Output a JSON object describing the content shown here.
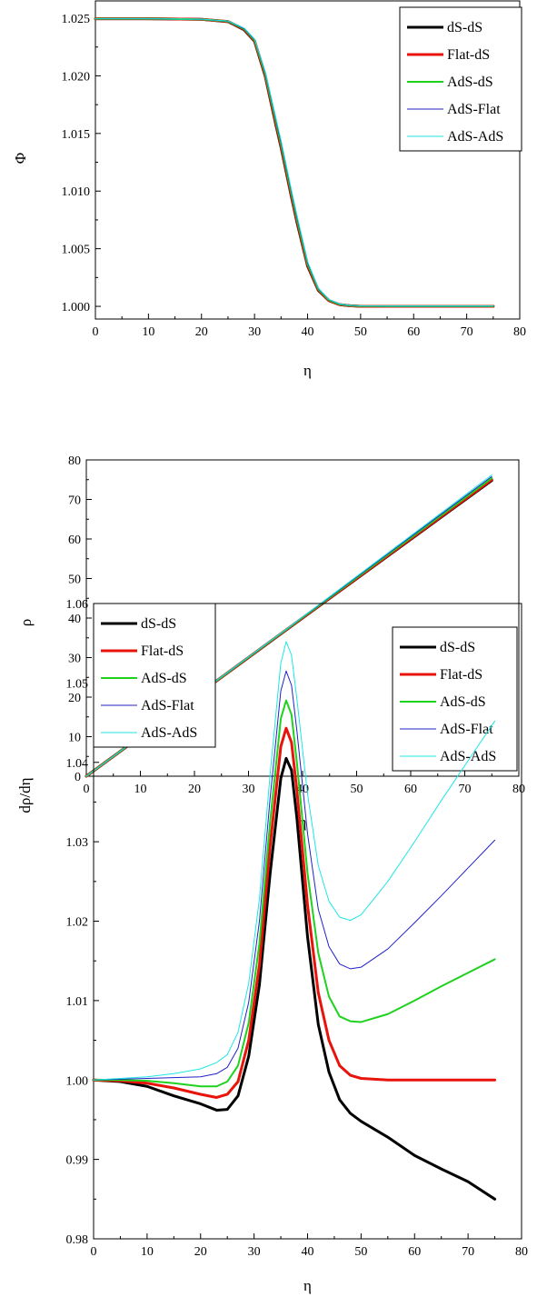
{
  "chart_data": [
    {
      "type": "line",
      "xlabel": "η",
      "ylabel": "Φ",
      "xlim": [
        0,
        80
      ],
      "ylim": [
        0.9989,
        1.0265
      ],
      "xticks": [
        "0",
        "10",
        "20",
        "30",
        "40",
        "50",
        "60",
        "70",
        "80"
      ],
      "yticks": [
        "1.000",
        "1.005",
        "1.010",
        "1.015",
        "1.020",
        "1.025"
      ],
      "grid": false,
      "legend_position": "top-right",
      "series": [
        {
          "name": "dS-dS",
          "color": "#000000",
          "x": [
            0,
            10,
            20,
            25,
            28,
            30,
            32,
            34,
            35,
            36,
            37,
            38,
            40,
            42,
            44,
            46,
            48,
            50,
            55,
            60,
            70,
            75
          ],
          "values": [
            1.02495,
            1.02495,
            1.0249,
            1.0247,
            1.024,
            1.023,
            1.02,
            1.0158,
            1.0138,
            1.0116,
            1.0094,
            1.0073,
            1.0035,
            1.0014,
            1.0005,
            1.00015,
            1.00005,
            1.0,
            1.0,
            1.0,
            1.0,
            1.0
          ]
        },
        {
          "name": "Flat-dS",
          "color": "#e8140c",
          "x": [
            0,
            10,
            20,
            25,
            28,
            30,
            32,
            34,
            35,
            36,
            37,
            38,
            40,
            42,
            44,
            46,
            48,
            50,
            55,
            60,
            70,
            75
          ],
          "values": [
            1.02495,
            1.02495,
            1.0249,
            1.02472,
            1.02405,
            1.02305,
            1.0201,
            1.01595,
            1.01395,
            1.01175,
            1.00955,
            1.00745,
            1.0036,
            1.00145,
            1.00052,
            1.00016,
            1.00005,
            1.0,
            1.0,
            1.0,
            1.0,
            1.0
          ]
        },
        {
          "name": "AdS-dS",
          "color": "#1ed21e",
          "x": [
            0,
            10,
            20,
            25,
            28,
            30,
            32,
            34,
            35,
            36,
            37,
            38,
            40,
            42,
            44,
            46,
            48,
            50,
            55,
            60,
            70,
            75
          ],
          "values": [
            1.02495,
            1.02495,
            1.0249,
            1.02473,
            1.02408,
            1.0231,
            1.0202,
            1.0161,
            1.0141,
            1.0119,
            1.0097,
            1.0076,
            1.0037,
            1.0015,
            1.00055,
            1.00018,
            1.00006,
            1.00002,
            1.00001,
            1.00001,
            1.00001,
            1.00001
          ]
        },
        {
          "name": "AdS-Flat",
          "color": "#2121c8",
          "x": [
            0,
            10,
            20,
            25,
            28,
            30,
            32,
            34,
            35,
            36,
            37,
            38,
            40,
            42,
            44,
            46,
            48,
            50,
            55,
            60,
            70,
            75
          ],
          "values": [
            1.02495,
            1.02495,
            1.0249,
            1.02474,
            1.0241,
            1.02315,
            1.0203,
            1.01625,
            1.01425,
            1.01205,
            1.00985,
            1.00775,
            1.0038,
            1.00155,
            1.00058,
            1.0002,
            1.00007,
            1.00003,
            1.00002,
            1.00002,
            1.00002,
            1.00002
          ]
        },
        {
          "name": "AdS-AdS",
          "color": "#1ee6e6",
          "x": [
            0,
            10,
            20,
            25,
            28,
            30,
            32,
            34,
            35,
            36,
            37,
            38,
            40,
            42,
            44,
            46,
            48,
            50,
            55,
            60,
            70,
            75
          ],
          "values": [
            1.02495,
            1.02495,
            1.02491,
            1.02476,
            1.02415,
            1.0232,
            1.0204,
            1.0164,
            1.0144,
            1.0122,
            1.01,
            1.0079,
            1.0039,
            1.0016,
            1.0006,
            1.00022,
            1.00008,
            1.00004,
            1.00003,
            1.00003,
            1.00003,
            1.00003
          ]
        }
      ]
    },
    {
      "type": "line",
      "xlabel": "η",
      "ylabel": "ρ",
      "xlim": [
        0,
        80
      ],
      "ylim": [
        0,
        80
      ],
      "xticks": [
        "0",
        "10",
        "20",
        "30",
        "40",
        "50",
        "60",
        "70",
        "80"
      ],
      "yticks": [
        "0",
        "10",
        "20",
        "30",
        "40",
        "50",
        "60",
        "70",
        "80"
      ],
      "grid": false,
      "legend_position": "bottom-right",
      "series": [
        {
          "name": "dS-dS",
          "color": "#000000",
          "x": [
            0,
            37,
            75
          ],
          "values": [
            0,
            37.0,
            74.8
          ]
        },
        {
          "name": "Flat-dS",
          "color": "#e8140c",
          "x": [
            0,
            37,
            75
          ],
          "values": [
            0,
            37.05,
            75.0
          ]
        },
        {
          "name": "AdS-dS",
          "color": "#1ed21e",
          "x": [
            0,
            37,
            75
          ],
          "values": [
            0,
            37.1,
            75.4
          ]
        },
        {
          "name": "AdS-Flat",
          "color": "#2121c8",
          "x": [
            0,
            37,
            75
          ],
          "values": [
            0,
            37.15,
            75.8
          ]
        },
        {
          "name": "AdS-AdS",
          "color": "#1ee6e6",
          "x": [
            0,
            37,
            75
          ],
          "values": [
            0,
            37.2,
            76.2
          ]
        }
      ]
    },
    {
      "type": "line",
      "xlabel": "η",
      "ylabel": "dρ/dη",
      "xlim": [
        0,
        80
      ],
      "ylim": [
        0.98,
        1.06
      ],
      "xticks": [
        "0",
        "10",
        "20",
        "30",
        "40",
        "50",
        "60",
        "70",
        "80"
      ],
      "yticks": [
        "0.98",
        "0.99",
        "1.00",
        "1.01",
        "1.02",
        "1.03",
        "1.04",
        "1.05",
        "1.06"
      ],
      "grid": false,
      "legend_position": "top-left",
      "series": [
        {
          "name": "dS-dS",
          "color": "#000000",
          "x": [
            0,
            5,
            10,
            15,
            20,
            23,
            25,
            27,
            29,
            31,
            33,
            35,
            36,
            37,
            38,
            40,
            42,
            44,
            46,
            48,
            50,
            55,
            60,
            65,
            70,
            75
          ],
          "values": [
            1.0,
            0.9998,
            0.9992,
            0.998,
            0.997,
            0.9962,
            0.9963,
            0.998,
            1.003,
            1.012,
            1.026,
            1.038,
            1.0405,
            1.039,
            1.033,
            1.018,
            1.007,
            1.001,
            0.9975,
            0.9958,
            0.9948,
            0.9928,
            0.9905,
            0.9888,
            0.9872,
            0.985
          ]
        },
        {
          "name": "Flat-dS",
          "color": "#e8140c",
          "x": [
            0,
            5,
            10,
            15,
            20,
            23,
            25,
            27,
            29,
            31,
            33,
            35,
            36,
            37,
            38,
            40,
            42,
            44,
            46,
            48,
            50,
            55,
            60,
            65,
            70,
            75
          ],
          "values": [
            1.0,
            0.9999,
            0.9996,
            0.999,
            0.9982,
            0.9978,
            0.9982,
            0.9998,
            1.005,
            1.0145,
            1.0295,
            1.042,
            1.0443,
            1.0425,
            1.0365,
            1.022,
            1.011,
            1.005,
            1.0018,
            1.0006,
            1.0002,
            1.0,
            1.0,
            1.0,
            1.0,
            1.0
          ]
        },
        {
          "name": "AdS-dS",
          "color": "#1ed21e",
          "x": [
            0,
            5,
            10,
            15,
            20,
            23,
            25,
            27,
            29,
            31,
            33,
            35,
            36,
            37,
            38,
            40,
            42,
            44,
            46,
            48,
            50,
            55,
            60,
            65,
            70,
            75
          ],
          "values": [
            1.0,
            1.0,
            0.9999,
            0.9996,
            0.9992,
            0.9992,
            0.9998,
            1.0018,
            1.0072,
            1.0172,
            1.0325,
            1.0455,
            1.0478,
            1.046,
            1.04,
            1.026,
            1.016,
            1.0105,
            1.008,
            1.0074,
            1.0073,
            1.0083,
            1.01,
            1.0118,
            1.0135,
            1.0152
          ]
        },
        {
          "name": "AdS-Flat",
          "color": "#2121c8",
          "x": [
            0,
            5,
            10,
            15,
            20,
            23,
            25,
            27,
            29,
            31,
            33,
            35,
            36,
            37,
            38,
            40,
            42,
            44,
            46,
            48,
            50,
            55,
            60,
            65,
            70,
            75
          ],
          "values": [
            1.0,
            1.0001,
            1.0002,
            1.0003,
            1.0004,
            1.0008,
            1.0016,
            1.004,
            1.0098,
            1.02,
            1.0355,
            1.049,
            1.0515,
            1.0497,
            1.044,
            1.031,
            1.0215,
            1.0168,
            1.0146,
            1.014,
            1.0142,
            1.0165,
            1.0198,
            1.0232,
            1.0267,
            1.0302
          ]
        },
        {
          "name": "AdS-AdS",
          "color": "#1ee6e6",
          "x": [
            0,
            5,
            10,
            15,
            20,
            23,
            25,
            27,
            29,
            31,
            33,
            35,
            36,
            37,
            38,
            40,
            42,
            44,
            46,
            48,
            50,
            55,
            60,
            65,
            70,
            75
          ],
          "values": [
            1.0,
            1.0002,
            1.0004,
            1.0008,
            1.0014,
            1.0022,
            1.0032,
            1.006,
            1.0122,
            1.0228,
            1.0385,
            1.0525,
            1.0552,
            1.0535,
            1.048,
            1.036,
            1.027,
            1.0225,
            1.0205,
            1.0201,
            1.0208,
            1.025,
            1.03,
            1.0352,
            1.0402,
            1.0452
          ]
        }
      ]
    }
  ]
}
